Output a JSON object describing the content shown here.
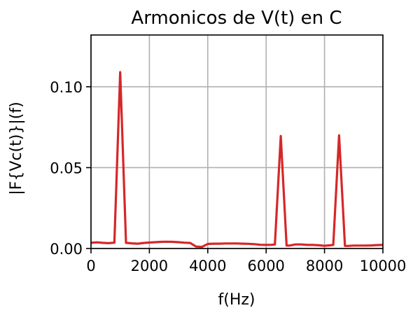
{
  "chart_data": {
    "type": "line",
    "title": "Armonicos de V(t) en C",
    "xlabel": "f(Hz)",
    "ylabel": "|F{Vc(t)}|(f)",
    "xlim": [
      0,
      10000
    ],
    "ylim": [
      0,
      0.132
    ],
    "x_ticks": [
      0,
      2000,
      4000,
      6000,
      8000,
      10000
    ],
    "x_tick_labels": [
      "0",
      "2000",
      "4000",
      "6000",
      "8000",
      "10000"
    ],
    "y_ticks": [
      0.0,
      0.05,
      0.1
    ],
    "y_tick_labels": [
      "0.00",
      "0.05",
      "0.10"
    ],
    "grid": true,
    "series": [
      {
        "color": "#d62728",
        "x": [
          0,
          200,
          400,
          600,
          800,
          1000,
          1200,
          1400,
          1600,
          1800,
          2000,
          2200,
          2400,
          2600,
          2800,
          3000,
          3200,
          3400,
          3600,
          3800,
          4000,
          4200,
          4400,
          4600,
          4800,
          5000,
          5200,
          5400,
          5600,
          5800,
          6000,
          6200,
          6300,
          6500,
          6700,
          6800,
          7000,
          7200,
          7400,
          7600,
          7800,
          8000,
          8200,
          8300,
          8500,
          8700,
          8800,
          9000,
          9200,
          9400,
          9600,
          9800,
          10000
        ],
        "y": [
          0.0035,
          0.0038,
          0.0035,
          0.0033,
          0.0036,
          0.109,
          0.0035,
          0.0032,
          0.003,
          0.0034,
          0.0037,
          0.0039,
          0.0041,
          0.0042,
          0.0041,
          0.0039,
          0.0036,
          0.0034,
          0.0012,
          0.001,
          0.0028,
          0.003,
          0.003,
          0.0031,
          0.0031,
          0.0031,
          0.003,
          0.0029,
          0.0027,
          0.0023,
          0.0022,
          0.0023,
          0.0025,
          0.0695,
          0.0018,
          0.0018,
          0.0025,
          0.0025,
          0.0022,
          0.0022,
          0.002,
          0.0017,
          0.002,
          0.0022,
          0.07,
          0.0016,
          0.0016,
          0.0018,
          0.0018,
          0.0018,
          0.0019,
          0.0021,
          0.0022
        ]
      }
    ]
  }
}
